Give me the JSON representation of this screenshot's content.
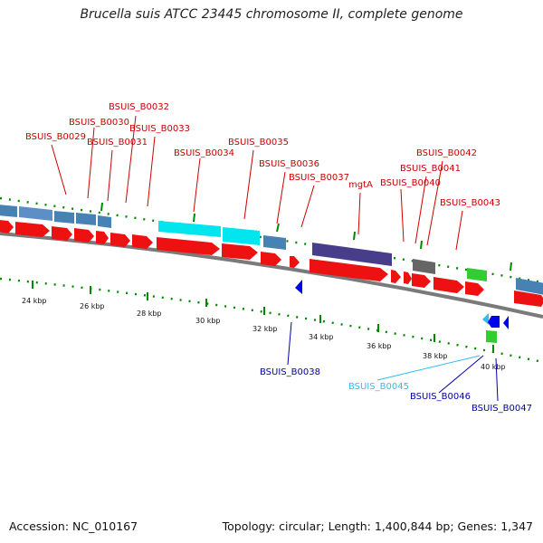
{
  "title": "Brucella suis ATCC 23445 chromosome II, complete genome",
  "footer": {
    "accession": "Accession: NC_010167",
    "topology": "Topology: circular; Length: 1,400,844 bp; Genes: 1,347"
  },
  "colors": {
    "forward_cds": "#ee1111",
    "steelblue_gene": "#4682b4",
    "cyan_gene": "#00e5ee",
    "purple_gene": "#483d8b",
    "gray_gene": "#666666",
    "green_gene": "#33cc33",
    "reverse_blue": "#0000ee",
    "light_blue": "#33bbee",
    "red_label": "#cc0000",
    "blue_label": "#0000aa",
    "tick_green": "#008800",
    "backbone": "#7a7a7a"
  },
  "scale_labels": [
    "24 kbp",
    "26 kbp",
    "28 kbp",
    "30 kbp",
    "32 kbp",
    "34 kbp",
    "36 kbp",
    "38 kbp",
    "40 kbp"
  ],
  "gene_labels": [
    {
      "text": "BSUIS_B0029",
      "color": "red"
    },
    {
      "text": "BSUIS_B0030",
      "color": "red"
    },
    {
      "text": "BSUIS_B0031",
      "color": "red"
    },
    {
      "text": "BSUIS_B0032",
      "color": "red"
    },
    {
      "text": "BSUIS_B0033",
      "color": "red"
    },
    {
      "text": "BSUIS_B0034",
      "color": "red"
    },
    {
      "text": "BSUIS_B0035",
      "color": "red"
    },
    {
      "text": "BSUIS_B0036",
      "color": "red"
    },
    {
      "text": "BSUIS_B0037",
      "color": "red"
    },
    {
      "text": "mgtA",
      "color": "red"
    },
    {
      "text": "BSUIS_B0040",
      "color": "red"
    },
    {
      "text": "BSUIS_B0041",
      "color": "red"
    },
    {
      "text": "BSUIS_B0042",
      "color": "red"
    },
    {
      "text": "BSUIS_B0043",
      "color": "red"
    },
    {
      "text": "BSUIS_B0038",
      "color": "blue"
    },
    {
      "text": "BSUIS_B0045",
      "color": "lightblue"
    },
    {
      "text": "BSUIS_B0046",
      "color": "blue"
    },
    {
      "text": "BSUIS_B0047",
      "color": "blue"
    }
  ]
}
